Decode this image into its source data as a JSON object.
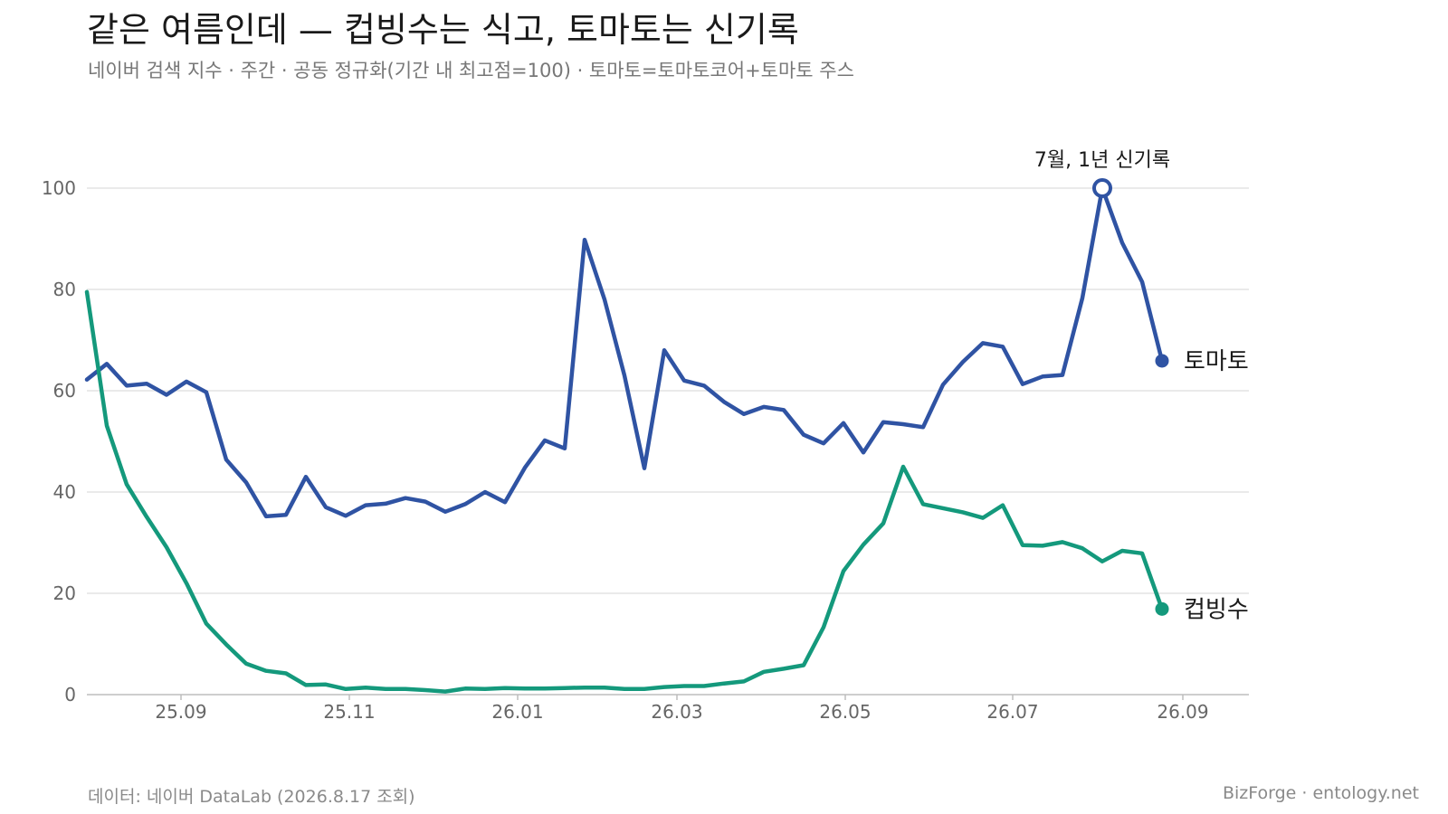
{
  "header": {
    "title": "같은 여름인데 — 컵빙수는 식고, 토마토는 신기록",
    "subtitle": "네이버 검색 지수 · 주간 · 공동 정규화(기간 내 최고점=100) · 토마토=토마토코어+토마토 주스"
  },
  "footer": {
    "source": "데이터: 네이버 DataLab (2026.8.17 조회)",
    "credit": "BizForge · entology.net"
  },
  "chart_data": {
    "type": "line",
    "title": "같은 여름인데 — 컵빙수는 식고, 토마토는 신기록",
    "xlabel": "",
    "ylabel": "",
    "ylim": [
      0,
      100
    ],
    "yticks": [
      "0",
      "20",
      "40",
      "60",
      "80",
      "100"
    ],
    "xticks": [
      "25.09",
      "25.11",
      "26.01",
      "26.03",
      "26.05",
      "26.07",
      "26.09"
    ],
    "grid": true,
    "colors": {
      "tomato": "#2f53a3",
      "cupbingsu": "#14997c"
    },
    "series": [
      {
        "name": "토마토",
        "values": [
          62.2,
          65.3,
          61.0,
          61.4,
          59.2,
          61.8,
          59.7,
          46.4,
          41.9,
          35.2,
          35.5,
          43.0,
          37.0,
          35.3,
          37.4,
          37.7,
          38.8,
          38.1,
          36.1,
          37.6,
          40.0,
          38.0,
          44.8,
          50.2,
          48.6,
          89.8,
          78.0,
          63.0,
          44.7,
          68.0,
          62.0,
          61.0,
          57.8,
          55.4,
          56.8,
          56.2,
          51.3,
          49.6,
          53.6,
          47.8,
          53.8,
          53.4,
          52.8,
          61.2,
          65.7,
          69.4,
          68.7,
          61.3,
          62.8,
          63.1,
          78.3,
          100.0,
          89.2,
          81.5,
          65.9
        ]
      },
      {
        "name": "컵빙수",
        "values": [
          79.5,
          53.1,
          41.5,
          35.1,
          29.1,
          22.0,
          14.0,
          9.9,
          6.1,
          4.7,
          4.2,
          1.9,
          2.0,
          1.1,
          1.4,
          1.1,
          1.1,
          0.9,
          0.6,
          1.2,
          1.1,
          1.3,
          1.2,
          1.2,
          1.3,
          1.4,
          1.4,
          1.1,
          1.1,
          1.5,
          1.7,
          1.7,
          2.2,
          2.6,
          4.5,
          5.1,
          5.8,
          13.3,
          24.4,
          29.6,
          33.8,
          45.0,
          37.6,
          36.8,
          36.0,
          34.9,
          37.4,
          29.5,
          29.4,
          30.1,
          28.9,
          26.3,
          28.4,
          27.9,
          16.9
        ]
      }
    ],
    "annotation": {
      "label": "7월, 1년 신기록",
      "series": "토마토",
      "index": 51,
      "value": 100.0
    }
  }
}
